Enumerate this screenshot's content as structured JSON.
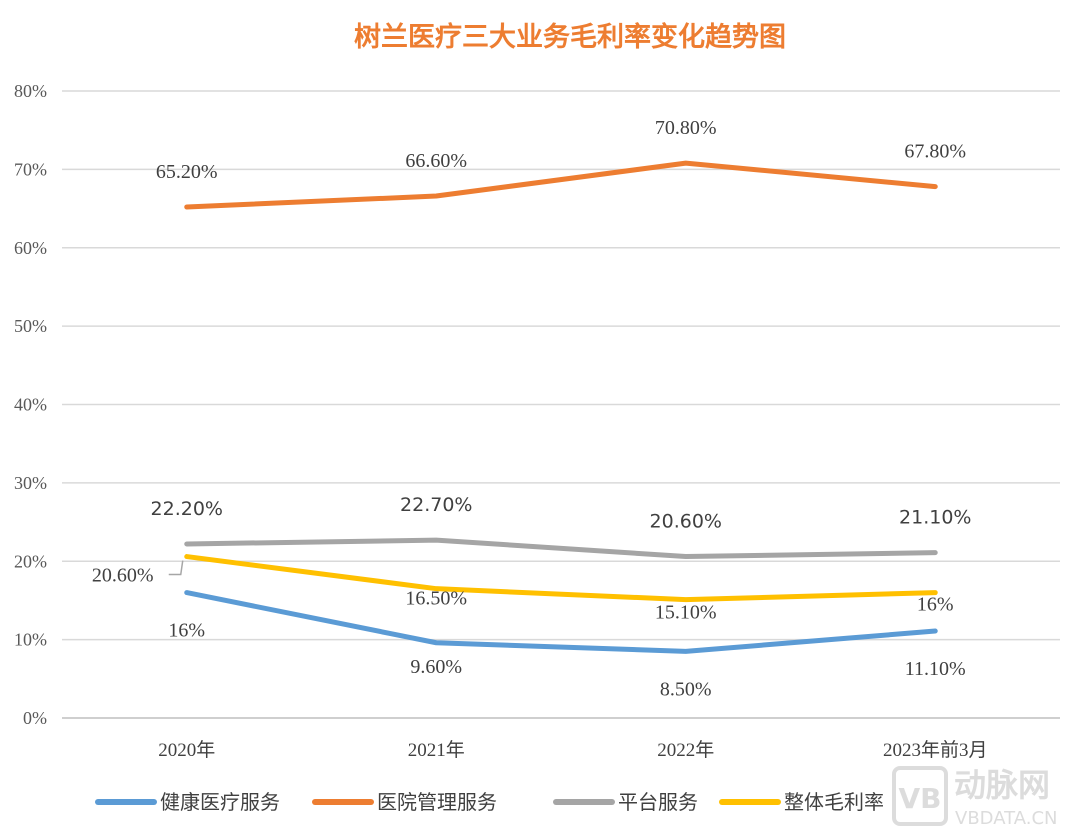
{
  "chart_data": {
    "type": "line",
    "title": "树兰医疗三大业务毛利率变化趋势图",
    "categories": [
      "2020年",
      "2021年",
      "2022年",
      "2023年前3月"
    ],
    "ylim": [
      0,
      80
    ],
    "yticks": [
      "0%",
      "10%",
      "20%",
      "30%",
      "40%",
      "50%",
      "60%",
      "70%",
      "80%"
    ],
    "grid": true,
    "legend_position": "bottom",
    "series": [
      {
        "name": "健康医疗服务",
        "color": "#5B9BD5",
        "values": [
          16,
          9.6,
          8.5,
          11.1
        ],
        "labels": [
          "16%",
          "9.60%",
          "8.50%",
          "11.10%"
        ]
      },
      {
        "name": "医院管理服务",
        "color": "#ED7D31",
        "values": [
          65.2,
          66.6,
          70.8,
          67.8
        ],
        "labels": [
          "65.20%",
          "66.60%",
          "70.80%",
          "67.80%"
        ]
      },
      {
        "name": "平台服务",
        "color": "#A5A5A5",
        "values": [
          22.2,
          22.7,
          20.6,
          21.1
        ],
        "labels": [
          "22.20%",
          "22.70%",
          "20.60%",
          "21.10%"
        ]
      },
      {
        "name": "整体毛利率",
        "color": "#FFC000",
        "values": [
          20.6,
          16.5,
          15.1,
          16
        ],
        "labels": [
          "20.60%",
          "16.50%",
          "15.10%",
          "16%"
        ]
      }
    ]
  },
  "watermark": {
    "logo": "VB",
    "name": "动脉网",
    "site": "VBDATA.CN"
  }
}
